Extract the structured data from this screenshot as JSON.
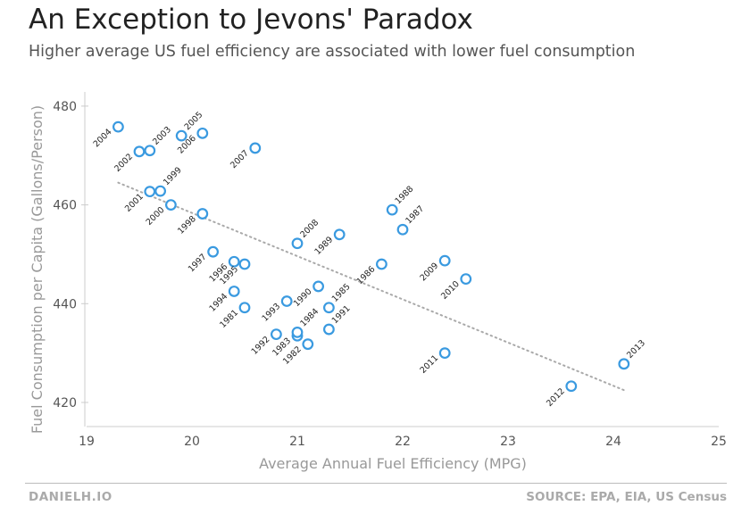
{
  "header": {
    "title": "An Exception to Jevons' Paradox",
    "subtitle": "Higher average US fuel efficiency are associated with lower fuel consumption"
  },
  "footer": {
    "left": "DANIELH.IO",
    "right": "SOURCE: EPA, EIA, US Census"
  },
  "colors": {
    "marker": "#3a9ae0",
    "trend": "#aaaaaa",
    "axis": "#cccccc"
  },
  "chart_data": {
    "type": "scatter",
    "xlabel": "Average Annual Fuel Efficiency (MPG)",
    "ylabel": "Fuel Consumption per Capita (Gallons/Person)",
    "xlim": [
      19,
      25
    ],
    "ylim": [
      416,
      480
    ],
    "x_ticks": [
      19,
      20,
      21,
      22,
      23,
      24,
      25
    ],
    "y_ticks": [
      420,
      440,
      460,
      480
    ],
    "grid": false,
    "trendline": {
      "style": "dotted",
      "x": [
        19.3,
        24.1
      ],
      "y": [
        464.5,
        422.5
      ]
    },
    "points": [
      {
        "label": "1981",
        "x": 20.5,
        "y": 439.2
      },
      {
        "label": "1982",
        "x": 21.1,
        "y": 431.8
      },
      {
        "label": "1983",
        "x": 21.0,
        "y": 433.5
      },
      {
        "label": "1984",
        "x": 21.0,
        "y": 434.2
      },
      {
        "label": "1985",
        "x": 21.3,
        "y": 439.2
      },
      {
        "label": "1986",
        "x": 21.8,
        "y": 448.0
      },
      {
        "label": "1987",
        "x": 22.0,
        "y": 455.0
      },
      {
        "label": "1988",
        "x": 21.9,
        "y": 459.0
      },
      {
        "label": "1989",
        "x": 21.4,
        "y": 454.0
      },
      {
        "label": "1990",
        "x": 21.2,
        "y": 443.5
      },
      {
        "label": "1991",
        "x": 21.3,
        "y": 434.8
      },
      {
        "label": "1992",
        "x": 20.8,
        "y": 433.8
      },
      {
        "label": "1993",
        "x": 20.9,
        "y": 440.5
      },
      {
        "label": "1994",
        "x": 20.4,
        "y": 442.5
      },
      {
        "label": "1995",
        "x": 20.5,
        "y": 448.0
      },
      {
        "label": "1996",
        "x": 20.4,
        "y": 448.5
      },
      {
        "label": "1997",
        "x": 20.2,
        "y": 450.5
      },
      {
        "label": "1998",
        "x": 20.1,
        "y": 458.2
      },
      {
        "label": "1999",
        "x": 19.7,
        "y": 462.8
      },
      {
        "label": "2000",
        "x": 19.8,
        "y": 460.0
      },
      {
        "label": "2001",
        "x": 19.6,
        "y": 462.7
      },
      {
        "label": "2002",
        "x": 19.5,
        "y": 470.8
      },
      {
        "label": "2003",
        "x": 19.6,
        "y": 471.0
      },
      {
        "label": "2004",
        "x": 19.3,
        "y": 475.8
      },
      {
        "label": "2005",
        "x": 19.9,
        "y": 474.0
      },
      {
        "label": "2006",
        "x": 20.1,
        "y": 474.5
      },
      {
        "label": "2007",
        "x": 20.6,
        "y": 471.5
      },
      {
        "label": "2008",
        "x": 21.0,
        "y": 452.2
      },
      {
        "label": "2009",
        "x": 22.4,
        "y": 448.7
      },
      {
        "label": "2010",
        "x": 22.6,
        "y": 445.0
      },
      {
        "label": "2011",
        "x": 22.4,
        "y": 430.0
      },
      {
        "label": "2012",
        "x": 23.6,
        "y": 423.3
      },
      {
        "label": "2013",
        "x": 24.1,
        "y": 427.8
      }
    ]
  }
}
